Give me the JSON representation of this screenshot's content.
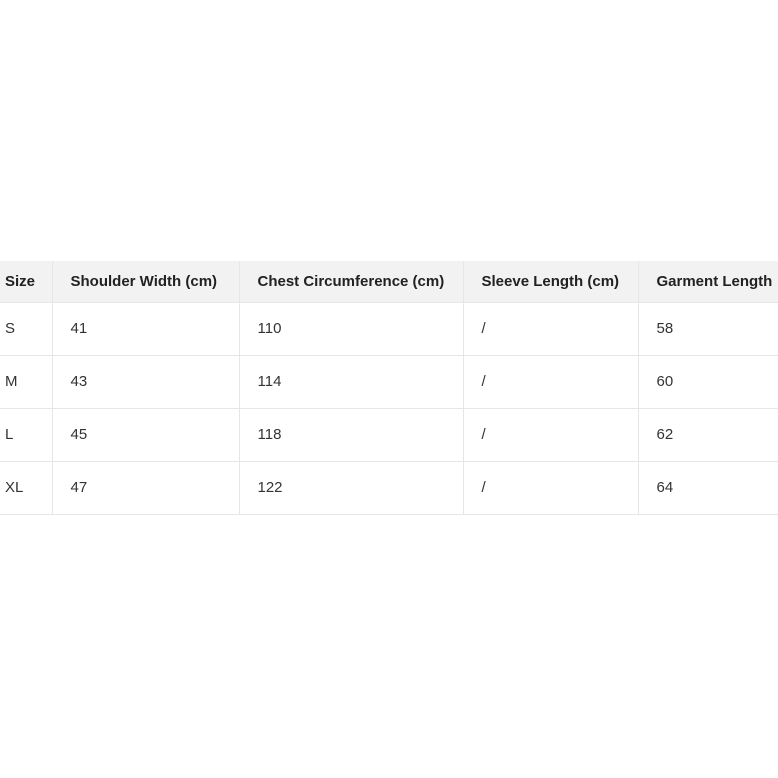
{
  "table": {
    "headers": [
      "Size",
      "Shoulder Width (cm)",
      "Chest Circumference (cm)",
      "Sleeve Length (cm)",
      "Garment Length"
    ],
    "rows": [
      [
        "S",
        "41",
        "110",
        "/",
        "58"
      ],
      [
        "M",
        "43",
        "114",
        "/",
        "60"
      ],
      [
        "L",
        "45",
        "118",
        "/",
        "62"
      ],
      [
        "XL",
        "47",
        "122",
        "/",
        "64"
      ]
    ]
  }
}
